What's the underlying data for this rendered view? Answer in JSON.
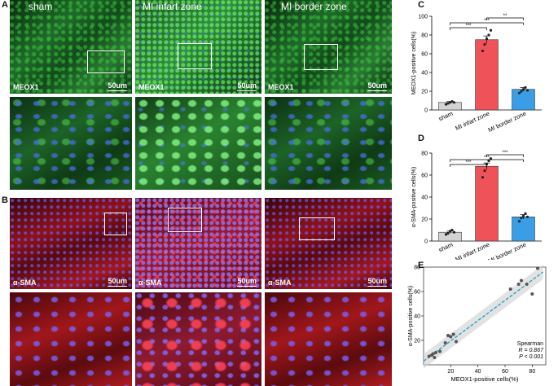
{
  "figure": {
    "panels": {
      "A": "A",
      "B": "B",
      "C": "C",
      "D": "D",
      "E": "E"
    },
    "columns": [
      "sham",
      "MI infart zone",
      "MI border zone"
    ],
    "row_a_marker": "MEOX1",
    "row_b_marker": "α-SMA",
    "scale_bar": "50um"
  },
  "chart_data": [
    {
      "panel": "C",
      "type": "bar",
      "categories": [
        "sham",
        "MI infart zone",
        "MI border zone"
      ],
      "values": [
        8,
        75,
        22
      ],
      "errors": [
        1,
        4,
        2
      ],
      "colors": [
        "#d3d3d3",
        "#f0525a",
        "#3a9ee6"
      ],
      "points": [
        [
          6,
          7,
          8,
          9,
          8
        ],
        [
          63,
          70,
          76,
          80,
          85
        ],
        [
          18,
          20,
          22,
          24,
          21
        ]
      ],
      "ylabel": "MEOX1-positive cells(%)",
      "ylim": [
        0,
        100
      ],
      "yticks": [
        0,
        20,
        40,
        60,
        80,
        100
      ],
      "brackets": [
        {
          "from": 0,
          "to": 1,
          "label": "***"
        },
        {
          "from": 1,
          "to": 2,
          "label": "**"
        },
        {
          "from": 0,
          "to": 2,
          "label": "***"
        }
      ]
    },
    {
      "panel": "D",
      "type": "bar",
      "categories": [
        "sham",
        "MI infart zone",
        "MI border zone"
      ],
      "values": [
        8,
        68,
        22
      ],
      "errors": [
        1,
        3,
        2
      ],
      "colors": [
        "#d3d3d3",
        "#f0525a",
        "#3a9ee6"
      ],
      "points": [
        [
          6,
          7,
          9,
          10,
          8
        ],
        [
          58,
          64,
          70,
          73,
          75
        ],
        [
          18,
          21,
          23,
          25,
          22
        ]
      ],
      "ylabel": "α-SMA-positive cells(%)",
      "ylim": [
        0,
        80
      ],
      "yticks": [
        0,
        20,
        40,
        60,
        80
      ],
      "brackets": [
        {
          "from": 0,
          "to": 1,
          "label": "***"
        },
        {
          "from": 1,
          "to": 2,
          "label": "***"
        },
        {
          "from": 0,
          "to": 2,
          "label": "***"
        }
      ]
    },
    {
      "panel": "E",
      "type": "scatter",
      "xlabel": "MEOX1-positive cells(%)",
      "ylabel": "α-SMA-positive cells(%)",
      "xlim": [
        0,
        90
      ],
      "ylim": [
        0,
        80
      ],
      "xticks": [
        20,
        40,
        60,
        80
      ],
      "yticks": [
        20,
        40,
        60,
        80
      ],
      "points": [
        [
          4,
          7
        ],
        [
          6,
          8
        ],
        [
          7,
          9
        ],
        [
          8,
          6
        ],
        [
          9,
          10
        ],
        [
          12,
          11
        ],
        [
          16,
          18
        ],
        [
          18,
          24
        ],
        [
          20,
          23
        ],
        [
          22,
          25
        ],
        [
          24,
          19
        ],
        [
          64,
          62
        ],
        [
          70,
          66
        ],
        [
          72,
          69
        ],
        [
          76,
          66
        ],
        [
          80,
          58
        ],
        [
          84,
          79
        ]
      ],
      "fit": {
        "x1": 0,
        "y1": 3,
        "x2": 88,
        "y2": 76
      },
      "annotation": [
        "Spearman",
        "R = 0.867",
        "P < 0.001"
      ]
    }
  ]
}
